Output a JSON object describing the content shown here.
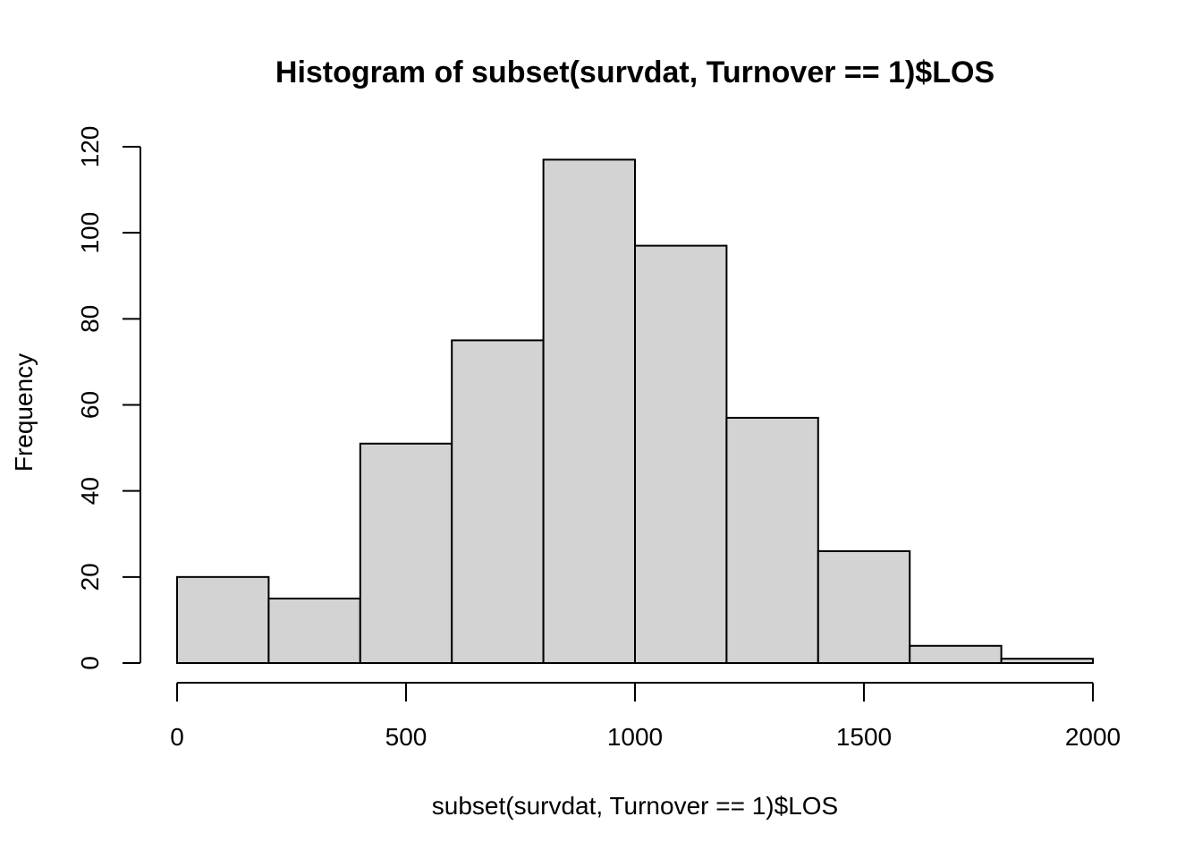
{
  "chart_data": {
    "type": "bar",
    "title": "Histogram of subset(survdat, Turnover == 1)$LOS",
    "xlabel": "subset(survdat, Turnover == 1)$LOS",
    "ylabel": "Frequency",
    "bins": [
      {
        "start": 0,
        "end": 200,
        "count": 20
      },
      {
        "start": 200,
        "end": 400,
        "count": 15
      },
      {
        "start": 400,
        "end": 600,
        "count": 51
      },
      {
        "start": 600,
        "end": 800,
        "count": 75
      },
      {
        "start": 800,
        "end": 1000,
        "count": 117
      },
      {
        "start": 1000,
        "end": 1200,
        "count": 97
      },
      {
        "start": 1200,
        "end": 1400,
        "count": 57
      },
      {
        "start": 1400,
        "end": 1600,
        "count": 26
      },
      {
        "start": 1600,
        "end": 1800,
        "count": 4
      },
      {
        "start": 1800,
        "end": 2000,
        "count": 1
      }
    ],
    "xlim": [
      0,
      2000
    ],
    "ylim": [
      0,
      120
    ],
    "x_ticks": [
      "0",
      "500",
      "1000",
      "1500",
      "2000"
    ],
    "y_ticks": [
      "0",
      "20",
      "40",
      "60",
      "80",
      "100",
      "120"
    ],
    "grid": false,
    "colors": {
      "bar_fill": "#d3d3d3",
      "bar_stroke": "#000000"
    }
  }
}
